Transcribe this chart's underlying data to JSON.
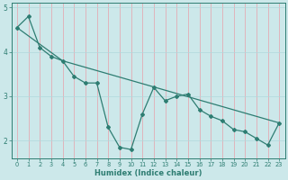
{
  "xlabel": "Humidex (Indice chaleur)",
  "background_color": "#cce8ea",
  "grid_color_v": "#e8a0a8",
  "grid_color_h": "#b0d8dc",
  "line_color": "#2e7d72",
  "series1": {
    "x": [
      0,
      1,
      2,
      3,
      4,
      5,
      6,
      7,
      8,
      9,
      10,
      11,
      12,
      13,
      14,
      15,
      16,
      17,
      18,
      19,
      20,
      21,
      22,
      23
    ],
    "y": [
      4.55,
      4.8,
      4.1,
      3.9,
      3.8,
      3.45,
      3.3,
      3.3,
      2.3,
      1.85,
      1.8,
      2.6,
      3.2,
      2.9,
      3.0,
      3.05,
      2.7,
      2.55,
      2.45,
      2.25,
      2.2,
      2.05,
      1.9,
      2.4
    ]
  },
  "series2": {
    "x": [
      0,
      4,
      23
    ],
    "y": [
      4.55,
      3.8,
      2.4
    ]
  },
  "ylim": [
    1.6,
    5.1
  ],
  "xlim": [
    -0.5,
    23.5
  ],
  "yticks": [
    2,
    3,
    4,
    5
  ],
  "xticks": [
    0,
    1,
    2,
    3,
    4,
    5,
    6,
    7,
    8,
    9,
    10,
    11,
    12,
    13,
    14,
    15,
    16,
    17,
    18,
    19,
    20,
    21,
    22,
    23
  ],
  "xlabel_fontsize": 6.0,
  "tick_fontsize": 4.8,
  "ytick_fontsize": 5.5
}
